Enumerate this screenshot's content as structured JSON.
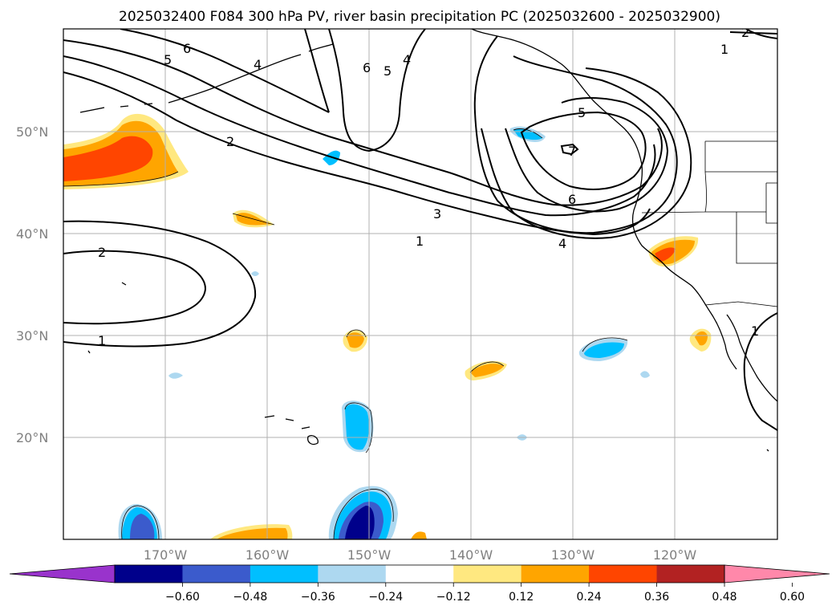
{
  "title": "2025032400 F084 300 hPa PV, river basin precipitation PC (2025032600 - 2025032900)",
  "map": {
    "lon_range": [
      -180,
      -110
    ],
    "lat_range": [
      10,
      60
    ],
    "lat_ticks": [
      "20°N",
      "30°N",
      "40°N",
      "50°N"
    ],
    "lon_ticks": [
      "170°W",
      "160°W",
      "150°W",
      "140°W",
      "130°W",
      "120°W"
    ],
    "gridlines": true
  },
  "contour_labels": [
    "6",
    "5",
    "4",
    "6",
    "5",
    "4",
    "2",
    "3",
    "1",
    "2",
    "1",
    "7",
    "6",
    "5",
    "4",
    "1",
    "2",
    "1"
  ],
  "colorbar": {
    "ticks": [
      "−0.60",
      "−0.48",
      "−0.36",
      "−0.24",
      "−0.12",
      "0.12",
      "0.24",
      "0.36",
      "0.48",
      "0.60"
    ],
    "colors": [
      "#9933cc",
      "#00008b",
      "#3b5bcc",
      "#00bfff",
      "#add8f0",
      "#ffffff",
      "#ffe880",
      "#ffa500",
      "#ff4500",
      "#b22222",
      "#ff88aa"
    ],
    "extend": "both"
  }
}
